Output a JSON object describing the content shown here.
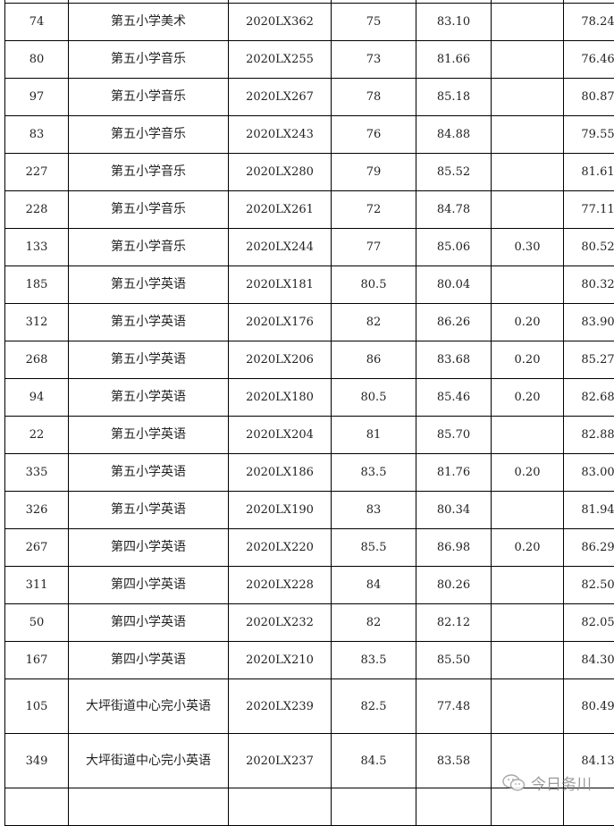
{
  "rows": [
    [
      "",
      "",
      "",
      "",
      "",
      "",
      ""
    ],
    [
      "74",
      "第五小学美术",
      "2020LX362",
      "75",
      "83.10",
      "",
      "78.24"
    ],
    [
      "80",
      "第五小学音乐",
      "2020LX255",
      "73",
      "81.66",
      "",
      "76.46"
    ],
    [
      "97",
      "第五小学音乐",
      "2020LX267",
      "78",
      "85.18",
      "",
      "80.87"
    ],
    [
      "83",
      "第五小学音乐",
      "2020LX243",
      "76",
      "84.88",
      "",
      "79.55"
    ],
    [
      "227",
      "第五小学音乐",
      "2020LX280",
      "79",
      "85.52",
      "",
      "81.61"
    ],
    [
      "228",
      "第五小学音乐",
      "2020LX261",
      "72",
      "84.78",
      "",
      "77.11"
    ],
    [
      "133",
      "第五小学音乐",
      "2020LX244",
      "77",
      "85.06",
      "0.30",
      "80.52"
    ],
    [
      "185",
      "第五小学英语",
      "2020LX181",
      "80.5",
      "80.04",
      "",
      "80.32"
    ],
    [
      "312",
      "第五小学英语",
      "2020LX176",
      "82",
      "86.26",
      "0.20",
      "83.90"
    ],
    [
      "268",
      "第五小学英语",
      "2020LX206",
      "86",
      "83.68",
      "0.20",
      "85.27"
    ],
    [
      "94",
      "第五小学英语",
      "2020LX180",
      "80.5",
      "85.46",
      "0.20",
      "82.68"
    ],
    [
      "22",
      "第五小学英语",
      "2020LX204",
      "81",
      "85.70",
      "",
      "82.88"
    ],
    [
      "335",
      "第五小学英语",
      "2020LX186",
      "83.5",
      "81.76",
      "0.20",
      "83.00"
    ],
    [
      "326",
      "第五小学英语",
      "2020LX190",
      "83",
      "80.34",
      "",
      "81.94"
    ],
    [
      "267",
      "第四小学英语",
      "2020LX220",
      "85.5",
      "86.98",
      "0.20",
      "86.29"
    ],
    [
      "311",
      "第四小学英语",
      "2020LX228",
      "84",
      "80.26",
      "",
      "82.50"
    ],
    [
      "50",
      "第四小学英语",
      "2020LX232",
      "82",
      "82.12",
      "",
      "82.05"
    ],
    [
      "167",
      "第四小学英语",
      "2020LX210",
      "83.5",
      "85.50",
      "",
      "84.30"
    ],
    [
      "105",
      "大坪街道中心完小英语",
      "2020LX239",
      "82.5",
      "77.48",
      "",
      "80.49"
    ],
    [
      "349",
      "大坪街道中心完小英语",
      "2020LX237",
      "84.5",
      "83.58",
      "",
      "84.13"
    ],
    [
      "",
      "",
      "",
      "",
      "",
      "",
      ""
    ]
  ],
  "watermark": {
    "text": "今日务川",
    "icon": "wechat-icon"
  }
}
